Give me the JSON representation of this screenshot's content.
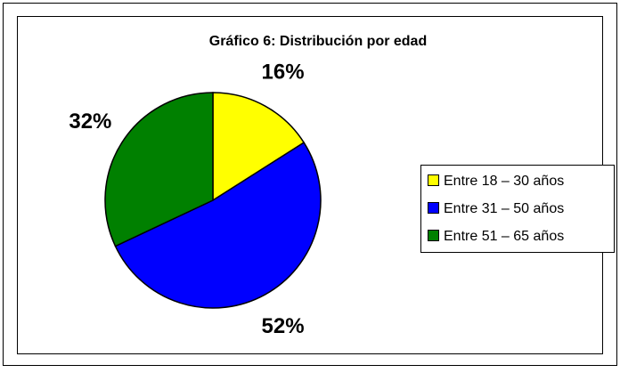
{
  "chart_data": {
    "type": "pie",
    "title": "Gráfico 6: Distribución por edad",
    "categories": [
      "Entre 18 – 30 años",
      "Entre 31 – 50 años",
      "Entre 51 – 65 años"
    ],
    "values": [
      16,
      52,
      32
    ],
    "value_labels": [
      "16%",
      "52%",
      "32%"
    ],
    "colors": [
      "#ffff00",
      "#0000ff",
      "#008000"
    ],
    "legend": "right"
  }
}
